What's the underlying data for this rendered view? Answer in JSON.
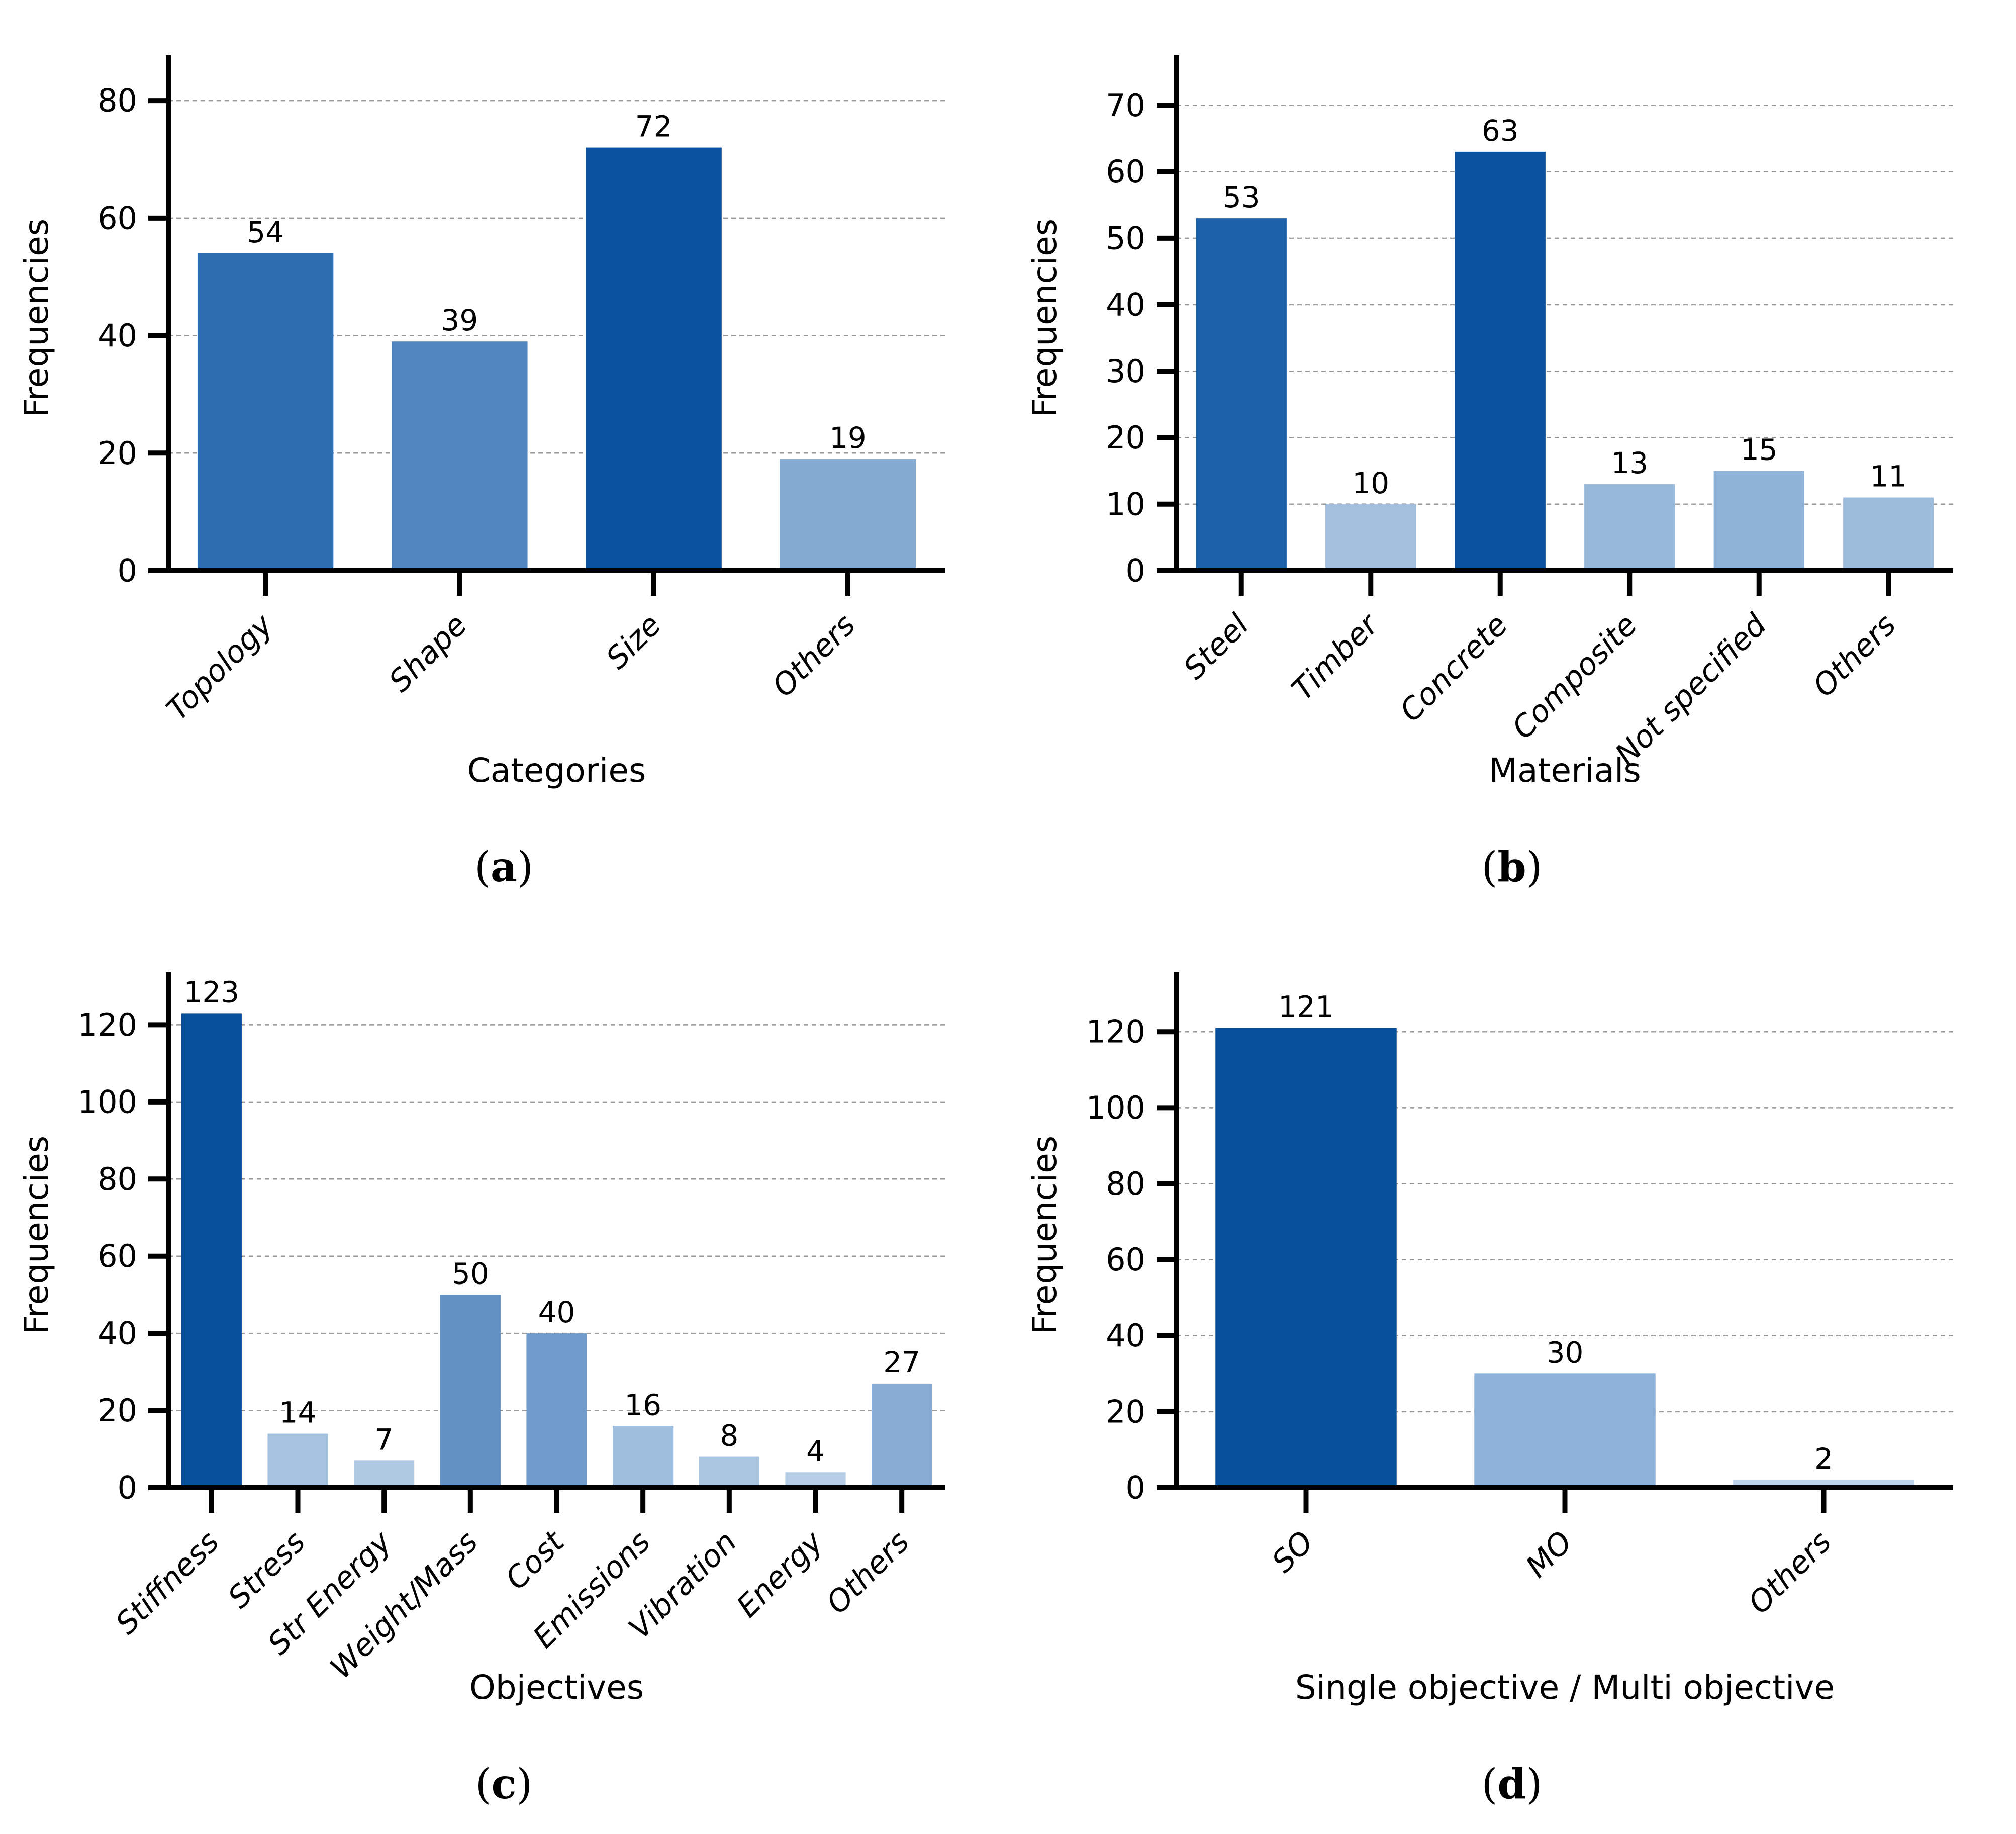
{
  "figure": {
    "background": "#ffffff",
    "grid_color": "#999999",
    "axis_color": "#000000",
    "text_color": "#000000"
  },
  "chart_data": [
    {
      "type": "bar",
      "title": "",
      "xlabel": "Categories",
      "ylabel": "Frequencies",
      "categories": [
        "Topology",
        "Shape",
        "Size",
        "Others"
      ],
      "values": [
        54,
        39,
        72,
        19
      ],
      "bar_colors": [
        "#2d6db0",
        "#5187be",
        "#0a51a0",
        "#84aad2"
      ],
      "yticks": [
        0,
        20,
        40,
        60,
        80
      ],
      "ylim": [
        0,
        86
      ],
      "grid": "horizontal-dashed",
      "legend": "none",
      "caption_open": "(",
      "caption_letter": "a",
      "caption_close": ")"
    },
    {
      "type": "bar",
      "title": "",
      "xlabel": "Materials",
      "ylabel": "Frequencies",
      "categories": [
        "Steel",
        "Timber",
        "Concrete",
        "Composite",
        "Not specified",
        "Others"
      ],
      "values": [
        53,
        10,
        63,
        13,
        15,
        11
      ],
      "bar_colors": [
        "#1e61ab",
        "#a2c0dd",
        "#0a51a0",
        "#97b8d9",
        "#8fb3d7",
        "#9dbcdb"
      ],
      "yticks": [
        0,
        10,
        20,
        30,
        40,
        50,
        60,
        70
      ],
      "ylim": [
        0,
        76
      ],
      "grid": "horizontal-dashed",
      "legend": "none",
      "caption_open": "(",
      "caption_letter": "b",
      "caption_close": ")"
    },
    {
      "type": "bar",
      "title": "",
      "xlabel": "Objectives",
      "ylabel": "Frequencies",
      "categories": [
        "Stiffness",
        "Stress",
        "Str Energy",
        "Weight/Mass",
        "Cost",
        "Emissions",
        "Vibration",
        "Energy",
        "Others"
      ],
      "values": [
        123,
        14,
        7,
        50,
        40,
        16,
        8,
        4,
        27
      ],
      "bar_colors": [
        "#084f9b",
        "#a5c2de",
        "#afc9e3",
        "#6391c4",
        "#6f9ac9",
        "#9fbedd",
        "#aac6e1",
        "#b5cde5",
        "#88acd3"
      ],
      "yticks": [
        0,
        20,
        40,
        60,
        80,
        100,
        120
      ],
      "ylim": [
        0,
        131
      ],
      "grid": "horizontal-dashed",
      "legend": "none",
      "caption_open": "(",
      "caption_letter": "c",
      "caption_close": ")"
    },
    {
      "type": "bar",
      "title": "",
      "xlabel": "Single objective / Multi objective",
      "ylabel": "Frequencies",
      "categories": [
        "SO",
        "MO",
        "Others"
      ],
      "values": [
        121,
        30,
        2
      ],
      "bar_colors": [
        "#084f9b",
        "#8db1d7",
        "#bdd3e9"
      ],
      "yticks": [
        0,
        20,
        40,
        60,
        80,
        100,
        120
      ],
      "ylim": [
        0,
        133
      ],
      "grid": "horizontal-dashed",
      "legend": "none",
      "caption_open": "(",
      "caption_letter": "d",
      "caption_close": ")"
    }
  ]
}
